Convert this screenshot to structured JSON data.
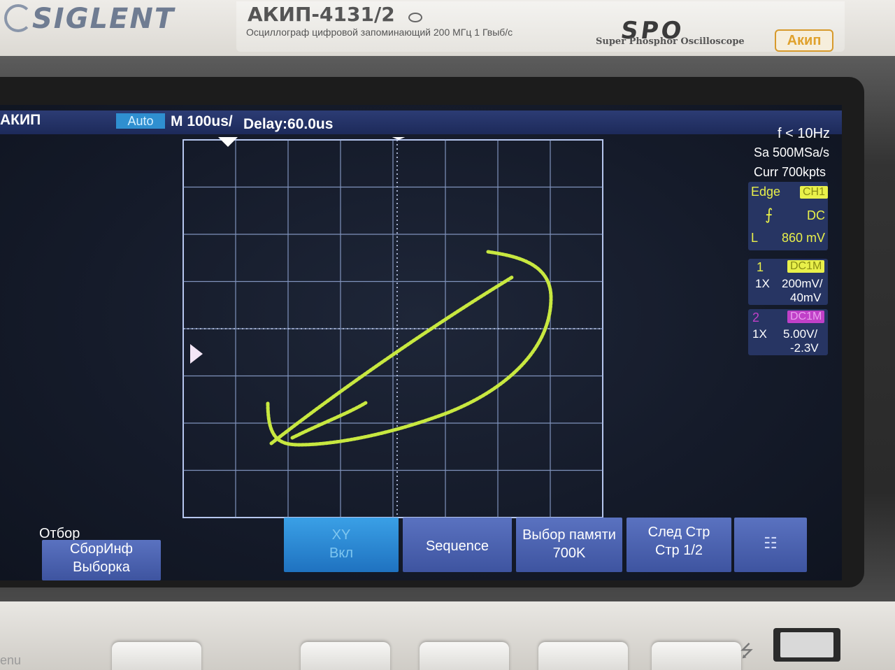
{
  "device": {
    "brand": "SIGLENT",
    "model": "АКИП-4131/2",
    "description": "Осциллограф цифровой запоминающий 200 МГц  1 Гвыб/с",
    "series_logo": "SPO",
    "series_sub": "Super Phosphor Oscilloscope",
    "badge": "Акип"
  },
  "top_bar": {
    "vendor": "АКИП",
    "mode": "Auto",
    "timebase": "M 100us/",
    "delay": "Delay:60.0us"
  },
  "right_panel": {
    "frequency": "f < 10Hz",
    "sample_rate": "Sa 500MSa/s",
    "memory": "Curr 700kpts",
    "trigger": {
      "type": "Edge",
      "source": "CH1",
      "slope_icon": "rising-edge-icon",
      "coupling": "DC",
      "level_label": "L",
      "level": "860 mV"
    },
    "ch1": {
      "number": "1",
      "coupling": "DC1M",
      "probe": "1X",
      "scale": "200mV/",
      "offset": "40mV"
    },
    "ch2": {
      "number": "2",
      "coupling": "DC1M",
      "probe": "1X",
      "scale": "5.00V/",
      "offset": "-2.3V"
    }
  },
  "menu": {
    "title": "Отбор",
    "key1": {
      "line1": "СборИнф",
      "line2": "Выборка"
    },
    "key2": {
      "line1": "XY",
      "line2": "Вкл"
    },
    "key3": {
      "line1": "Sequence"
    },
    "key4": {
      "line1": "Выбор памяти",
      "line2": "700K"
    },
    "key5": {
      "line1": "След Стр",
      "line2": "Стр 1/2"
    },
    "key6": {
      "icon": "network-icon"
    }
  },
  "bottom": {
    "menu_label": "enu",
    "usb_icon": "usb-icon"
  },
  "colors": {
    "trace": "#c8e840",
    "grid": "#9ab0e0",
    "screen": "#151b2a",
    "topbar": "#2c3c74",
    "ch1": "#e9f04a",
    "ch2": "#c040c8"
  }
}
